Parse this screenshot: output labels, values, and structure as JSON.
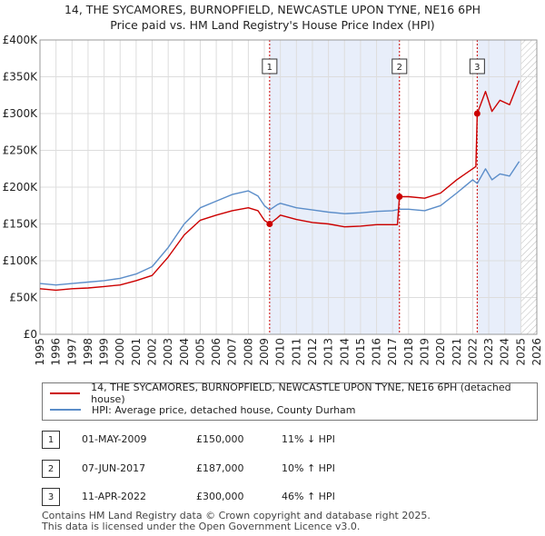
{
  "title_line1": "14, THE SYCAMORES, BURNOPFIELD, NEWCASTLE UPON TYNE, NE16 6PH",
  "title_line2": "Price paid vs. HM Land Registry's House Price Index (HPI)",
  "colors": {
    "price_line": "#cc0000",
    "hpi_line": "#5b8dc9",
    "shade": "#e8eefa",
    "marker_line": "#cc0000",
    "grid": "#dddddd"
  },
  "chart_data": {
    "type": "line",
    "x_range": [
      1995,
      2026
    ],
    "y_range": [
      0,
      400000
    ],
    "yticks": [
      {
        "value": 0,
        "label": "£0"
      },
      {
        "value": 50000,
        "label": "£50K"
      },
      {
        "value": 100000,
        "label": "£100K"
      },
      {
        "value": 150000,
        "label": "£150K"
      },
      {
        "value": 200000,
        "label": "£200K"
      },
      {
        "value": 250000,
        "label": "£250K"
      },
      {
        "value": 300000,
        "label": "£300K"
      },
      {
        "value": 350000,
        "label": "£350K"
      },
      {
        "value": 400000,
        "label": "£400K"
      }
    ],
    "xticks": [
      "1995",
      "1996",
      "1997",
      "1998",
      "1999",
      "2000",
      "2001",
      "2002",
      "2003",
      "2004",
      "2005",
      "2006",
      "2007",
      "2008",
      "2009",
      "2010",
      "2011",
      "2012",
      "2013",
      "2014",
      "2015",
      "2016",
      "2017",
      "2018",
      "2019",
      "2020",
      "2021",
      "2022",
      "2023",
      "2024",
      "2025",
      "2026"
    ],
    "shaded_ranges": [
      [
        2009.33,
        2017.43
      ],
      [
        2022.28,
        2025.0
      ]
    ],
    "hatch_from": 2025.0,
    "series": [
      {
        "name": "14, THE SYCAMORES, BURNOPFIELD, NEWCASTLE UPON TYNE, NE16 6PH (detached house)",
        "key": "price",
        "points": [
          [
            1995,
            62000
          ],
          [
            1996,
            60000
          ],
          [
            1997,
            62000
          ],
          [
            1998,
            63000
          ],
          [
            1999,
            65000
          ],
          [
            2000,
            67000
          ],
          [
            2001,
            73000
          ],
          [
            2002,
            80000
          ],
          [
            2003,
            105000
          ],
          [
            2004,
            135000
          ],
          [
            2005,
            155000
          ],
          [
            2006,
            162000
          ],
          [
            2007,
            168000
          ],
          [
            2008,
            172000
          ],
          [
            2008.6,
            168000
          ],
          [
            2009.0,
            155000
          ],
          [
            2009.33,
            150000
          ],
          [
            2009.8,
            158000
          ],
          [
            2010,
            162000
          ],
          [
            2011,
            156000
          ],
          [
            2012,
            152000
          ],
          [
            2013,
            150000
          ],
          [
            2014,
            146000
          ],
          [
            2015,
            147000
          ],
          [
            2016,
            149000
          ],
          [
            2017.3,
            149000
          ],
          [
            2017.43,
            187000
          ],
          [
            2018,
            187000
          ],
          [
            2019,
            185000
          ],
          [
            2020,
            192000
          ],
          [
            2021,
            210000
          ],
          [
            2022.2,
            228000
          ],
          [
            2022.28,
            300000
          ],
          [
            2022.8,
            330000
          ],
          [
            2023.2,
            303000
          ],
          [
            2023.7,
            318000
          ],
          [
            2024.3,
            312000
          ],
          [
            2024.9,
            345000
          ]
        ]
      },
      {
        "name": "HPI: Average price, detached house, County Durham",
        "key": "hpi",
        "points": [
          [
            1995,
            69000
          ],
          [
            1996,
            67000
          ],
          [
            1997,
            69000
          ],
          [
            1998,
            71000
          ],
          [
            1999,
            73000
          ],
          [
            2000,
            76000
          ],
          [
            2001,
            82000
          ],
          [
            2002,
            92000
          ],
          [
            2003,
            118000
          ],
          [
            2004,
            150000
          ],
          [
            2005,
            172000
          ],
          [
            2006,
            181000
          ],
          [
            2007,
            190000
          ],
          [
            2008,
            195000
          ],
          [
            2008.6,
            188000
          ],
          [
            2009.0,
            175000
          ],
          [
            2009.33,
            169000
          ],
          [
            2009.8,
            176000
          ],
          [
            2010,
            178000
          ],
          [
            2011,
            172000
          ],
          [
            2012,
            169000
          ],
          [
            2013,
            166000
          ],
          [
            2014,
            164000
          ],
          [
            2015,
            165000
          ],
          [
            2016,
            167000
          ],
          [
            2017,
            168000
          ],
          [
            2017.43,
            170000
          ],
          [
            2018,
            170000
          ],
          [
            2019,
            168000
          ],
          [
            2020,
            175000
          ],
          [
            2021,
            192000
          ],
          [
            2022,
            210000
          ],
          [
            2022.28,
            205000
          ],
          [
            2022.8,
            225000
          ],
          [
            2023.2,
            210000
          ],
          [
            2023.7,
            218000
          ],
          [
            2024.3,
            215000
          ],
          [
            2024.9,
            235000
          ]
        ]
      }
    ],
    "sales": [
      {
        "id": "1",
        "x": 2009.33,
        "price": 150000
      },
      {
        "id": "2",
        "x": 2017.43,
        "price": 187000
      },
      {
        "id": "3",
        "x": 2022.28,
        "price": 300000
      }
    ]
  },
  "legend": {
    "price_label": "14, THE SYCAMORES, BURNOPFIELD, NEWCASTLE UPON TYNE, NE16 6PH (detached house)",
    "hpi_label": "HPI: Average price, detached house, County Durham"
  },
  "transactions": [
    {
      "num": "1",
      "date": "01-MAY-2009",
      "price": "£150,000",
      "hpi": "11% ↓ HPI"
    },
    {
      "num": "2",
      "date": "07-JUN-2017",
      "price": "£187,000",
      "hpi": "10% ↑ HPI"
    },
    {
      "num": "3",
      "date": "11-APR-2022",
      "price": "£300,000",
      "hpi": "46% ↑ HPI"
    }
  ],
  "footer_line1": "Contains HM Land Registry data © Crown copyright and database right 2025.",
  "footer_line2": "This data is licensed under the Open Government Licence v3.0."
}
